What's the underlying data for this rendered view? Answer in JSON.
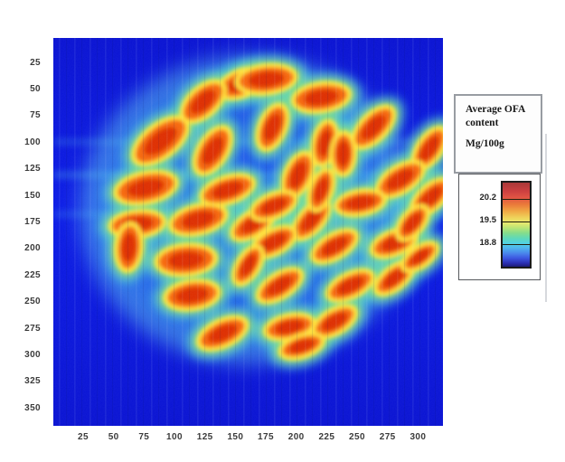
{
  "figure": {
    "legend_title": "Average OFA content",
    "legend_units": "Mg/100g"
  },
  "colors": {
    "bg_blue": "#0b1be6",
    "bg_blue_dark": "#0912d2",
    "dish_blue": "#2d9bf3",
    "dish_rim_cyan": "#6ee4ec",
    "halo_cyan": "#3ed3d8",
    "halo_green": "#8ee06a",
    "seed_rim_yellow": "#ffe53c",
    "seed_orange": "#f6680f",
    "seed_core_red": "#de2e05",
    "axis_label": "#3b3b3b",
    "colorbar_stops": [
      [
        0,
        "#a83838"
      ],
      [
        10,
        "#cc4040"
      ],
      [
        18,
        "#e25544"
      ],
      [
        26,
        "#ea7a3a"
      ],
      [
        34,
        "#f0a844"
      ],
      [
        42,
        "#efd45c"
      ],
      [
        48,
        "#e8ea6e"
      ],
      [
        54,
        "#b8e476"
      ],
      [
        60,
        "#84dd8c"
      ],
      [
        66,
        "#5fd9b8"
      ],
      [
        72,
        "#52d2e2"
      ],
      [
        78,
        "#4fb2ee"
      ],
      [
        84,
        "#4a86ec"
      ],
      [
        90,
        "#3c55e0"
      ],
      [
        96,
        "#2a2db0"
      ],
      [
        100,
        "#1c1c74"
      ]
    ]
  },
  "chart_data": {
    "type": "heatmap",
    "title": "Average OFA content",
    "units": "Mg/100g",
    "xlabel": "",
    "ylabel": "",
    "xlim": [
      0,
      320
    ],
    "ylim": [
      0,
      365
    ],
    "x_ticks": [
      25,
      50,
      75,
      100,
      125,
      150,
      175,
      200,
      225,
      250,
      275,
      300
    ],
    "y_ticks": [
      25,
      50,
      75,
      100,
      125,
      150,
      175,
      200,
      225,
      250,
      275,
      300,
      325,
      350
    ],
    "grid": false,
    "colormap": "jet",
    "legend_position": "right",
    "colorbar_ticks": [
      20.2,
      19.5,
      18.8
    ],
    "colorbar_range_est": [
      18.1,
      20.7
    ],
    "background_value_est": 18.3,
    "seed_core_value_est": 20.5,
    "n_seeds": 39,
    "seeds_x_y_rx_ry_angle": [
      [
        154,
        43,
        19,
        12,
        -22
      ],
      [
        175,
        39,
        24,
        13,
        -6
      ],
      [
        220,
        56,
        23,
        13,
        -8
      ],
      [
        123,
        60,
        21,
        13,
        -42
      ],
      [
        88,
        97,
        26,
        15,
        -38
      ],
      [
        131,
        106,
        21,
        13,
        -58
      ],
      [
        180,
        84,
        19,
        12,
        -67
      ],
      [
        223,
        99,
        18,
        11,
        -78
      ],
      [
        263,
        84,
        21,
        12,
        -45
      ],
      [
        309,
        104,
        19,
        11,
        -55
      ],
      [
        76,
        141,
        25,
        14,
        -12
      ],
      [
        143,
        143,
        22,
        12,
        -18
      ],
      [
        201,
        129,
        19,
        12,
        -65
      ],
      [
        238,
        109,
        17,
        11,
        -88
      ],
      [
        285,
        133,
        21,
        12,
        -32
      ],
      [
        252,
        155,
        20,
        11,
        -10
      ],
      [
        310,
        150,
        19,
        11,
        -42
      ],
      [
        69,
        175,
        22,
        12,
        -6
      ],
      [
        62,
        197,
        19,
        12,
        -85
      ],
      [
        119,
        171,
        23,
        13,
        -14
      ],
      [
        164,
        175,
        19,
        11,
        -32
      ],
      [
        109,
        209,
        24,
        14,
        -5
      ],
      [
        181,
        158,
        19,
        11,
        -22
      ],
      [
        212,
        171,
        19,
        11,
        -48
      ],
      [
        181,
        192,
        19,
        11,
        -28
      ],
      [
        231,
        196,
        20,
        11,
        -30
      ],
      [
        280,
        193,
        19,
        11,
        -22
      ],
      [
        295,
        174,
        16,
        10,
        -50
      ],
      [
        114,
        242,
        22,
        13,
        -8
      ],
      [
        160,
        214,
        17,
        10,
        -58
      ],
      [
        186,
        233,
        20,
        11,
        -32
      ],
      [
        244,
        233,
        20,
        11,
        -26
      ],
      [
        280,
        226,
        18,
        10,
        -38
      ],
      [
        139,
        278,
        21,
        12,
        -25
      ],
      [
        194,
        272,
        20,
        11,
        -12
      ],
      [
        231,
        267,
        19,
        11,
        -30
      ],
      [
        301,
        206,
        16,
        9,
        -35
      ],
      [
        220,
        143,
        17,
        10,
        -70
      ],
      [
        204,
        290,
        18,
        10,
        -18
      ]
    ],
    "description": "Chemical image (pixel map) of ~39 almond seeds lying in a circular dish; seed pixels show high OFA content (red/orange, above 20.2 Mg/100g) fading through yellow and green rims to a cyan halo, over a uniform blue background (~18.3 Mg/100g)."
  }
}
